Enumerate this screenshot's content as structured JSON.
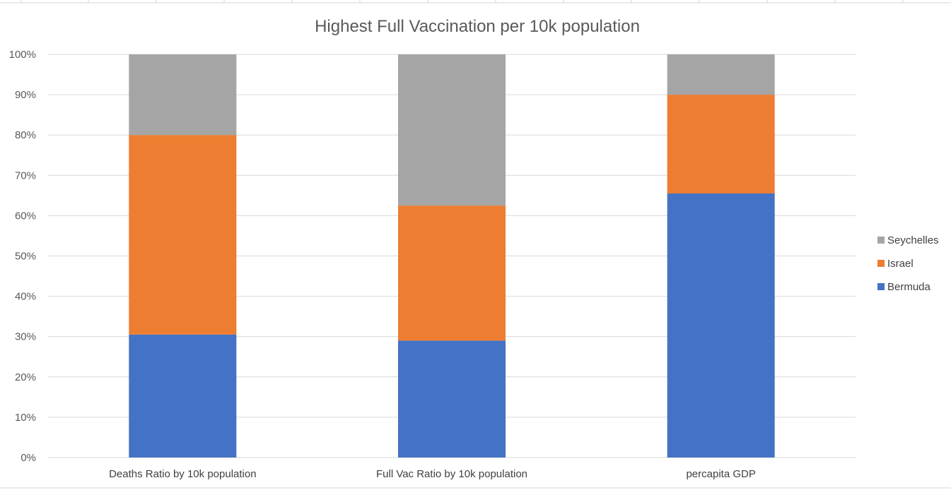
{
  "chart_data": {
    "type": "bar",
    "stacked": "percent",
    "title": "Highest Full Vaccination per 10k population",
    "categories": [
      "Deaths Ratio by 10k population",
      "Full Vac Ratio by 10k population",
      "percapita GDP"
    ],
    "series": [
      {
        "name": "Bermuda",
        "color": "#4472C4",
        "values": [
          30.5,
          29.0,
          65.5
        ]
      },
      {
        "name": "Israel",
        "color": "#ED7D31",
        "values": [
          49.5,
          33.5,
          24.5
        ]
      },
      {
        "name": "Seychelles",
        "color": "#A5A5A5",
        "values": [
          20.0,
          37.5,
          10.0
        ]
      }
    ],
    "yticks": [
      "0%",
      "10%",
      "20%",
      "30%",
      "40%",
      "50%",
      "60%",
      "70%",
      "80%",
      "90%",
      "100%"
    ],
    "ylim": [
      0,
      100
    ],
    "grid": true,
    "legend_position": "right"
  }
}
